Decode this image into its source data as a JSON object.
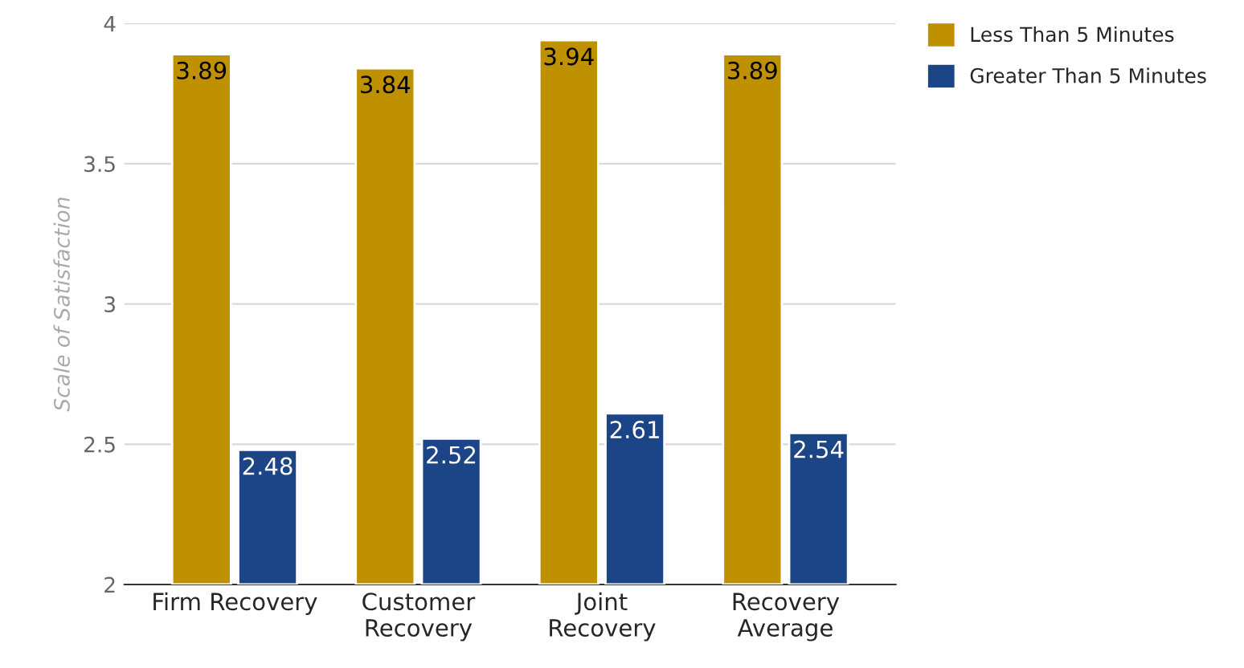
{
  "chart_data": {
    "type": "bar",
    "ylabel": "Scale of Satisfaction",
    "categories": [
      "Firm Recovery",
      "Customer\nRecovery",
      "Joint\nRecovery",
      "Recovery\nAverage"
    ],
    "series": [
      {
        "name": "Less Than 5 Minutes",
        "color": "#bf9000",
        "values": [
          3.89,
          3.84,
          3.94,
          3.89
        ]
      },
      {
        "name": "Greater Than 5 Minutes",
        "color": "#1c4587",
        "values": [
          2.48,
          2.52,
          2.61,
          2.54
        ]
      }
    ],
    "ylim": [
      2,
      4
    ],
    "yticks": [
      2,
      2.5,
      3,
      3.5,
      4
    ],
    "grid": "y",
    "legend": "top right",
    "data_labels": true
  }
}
